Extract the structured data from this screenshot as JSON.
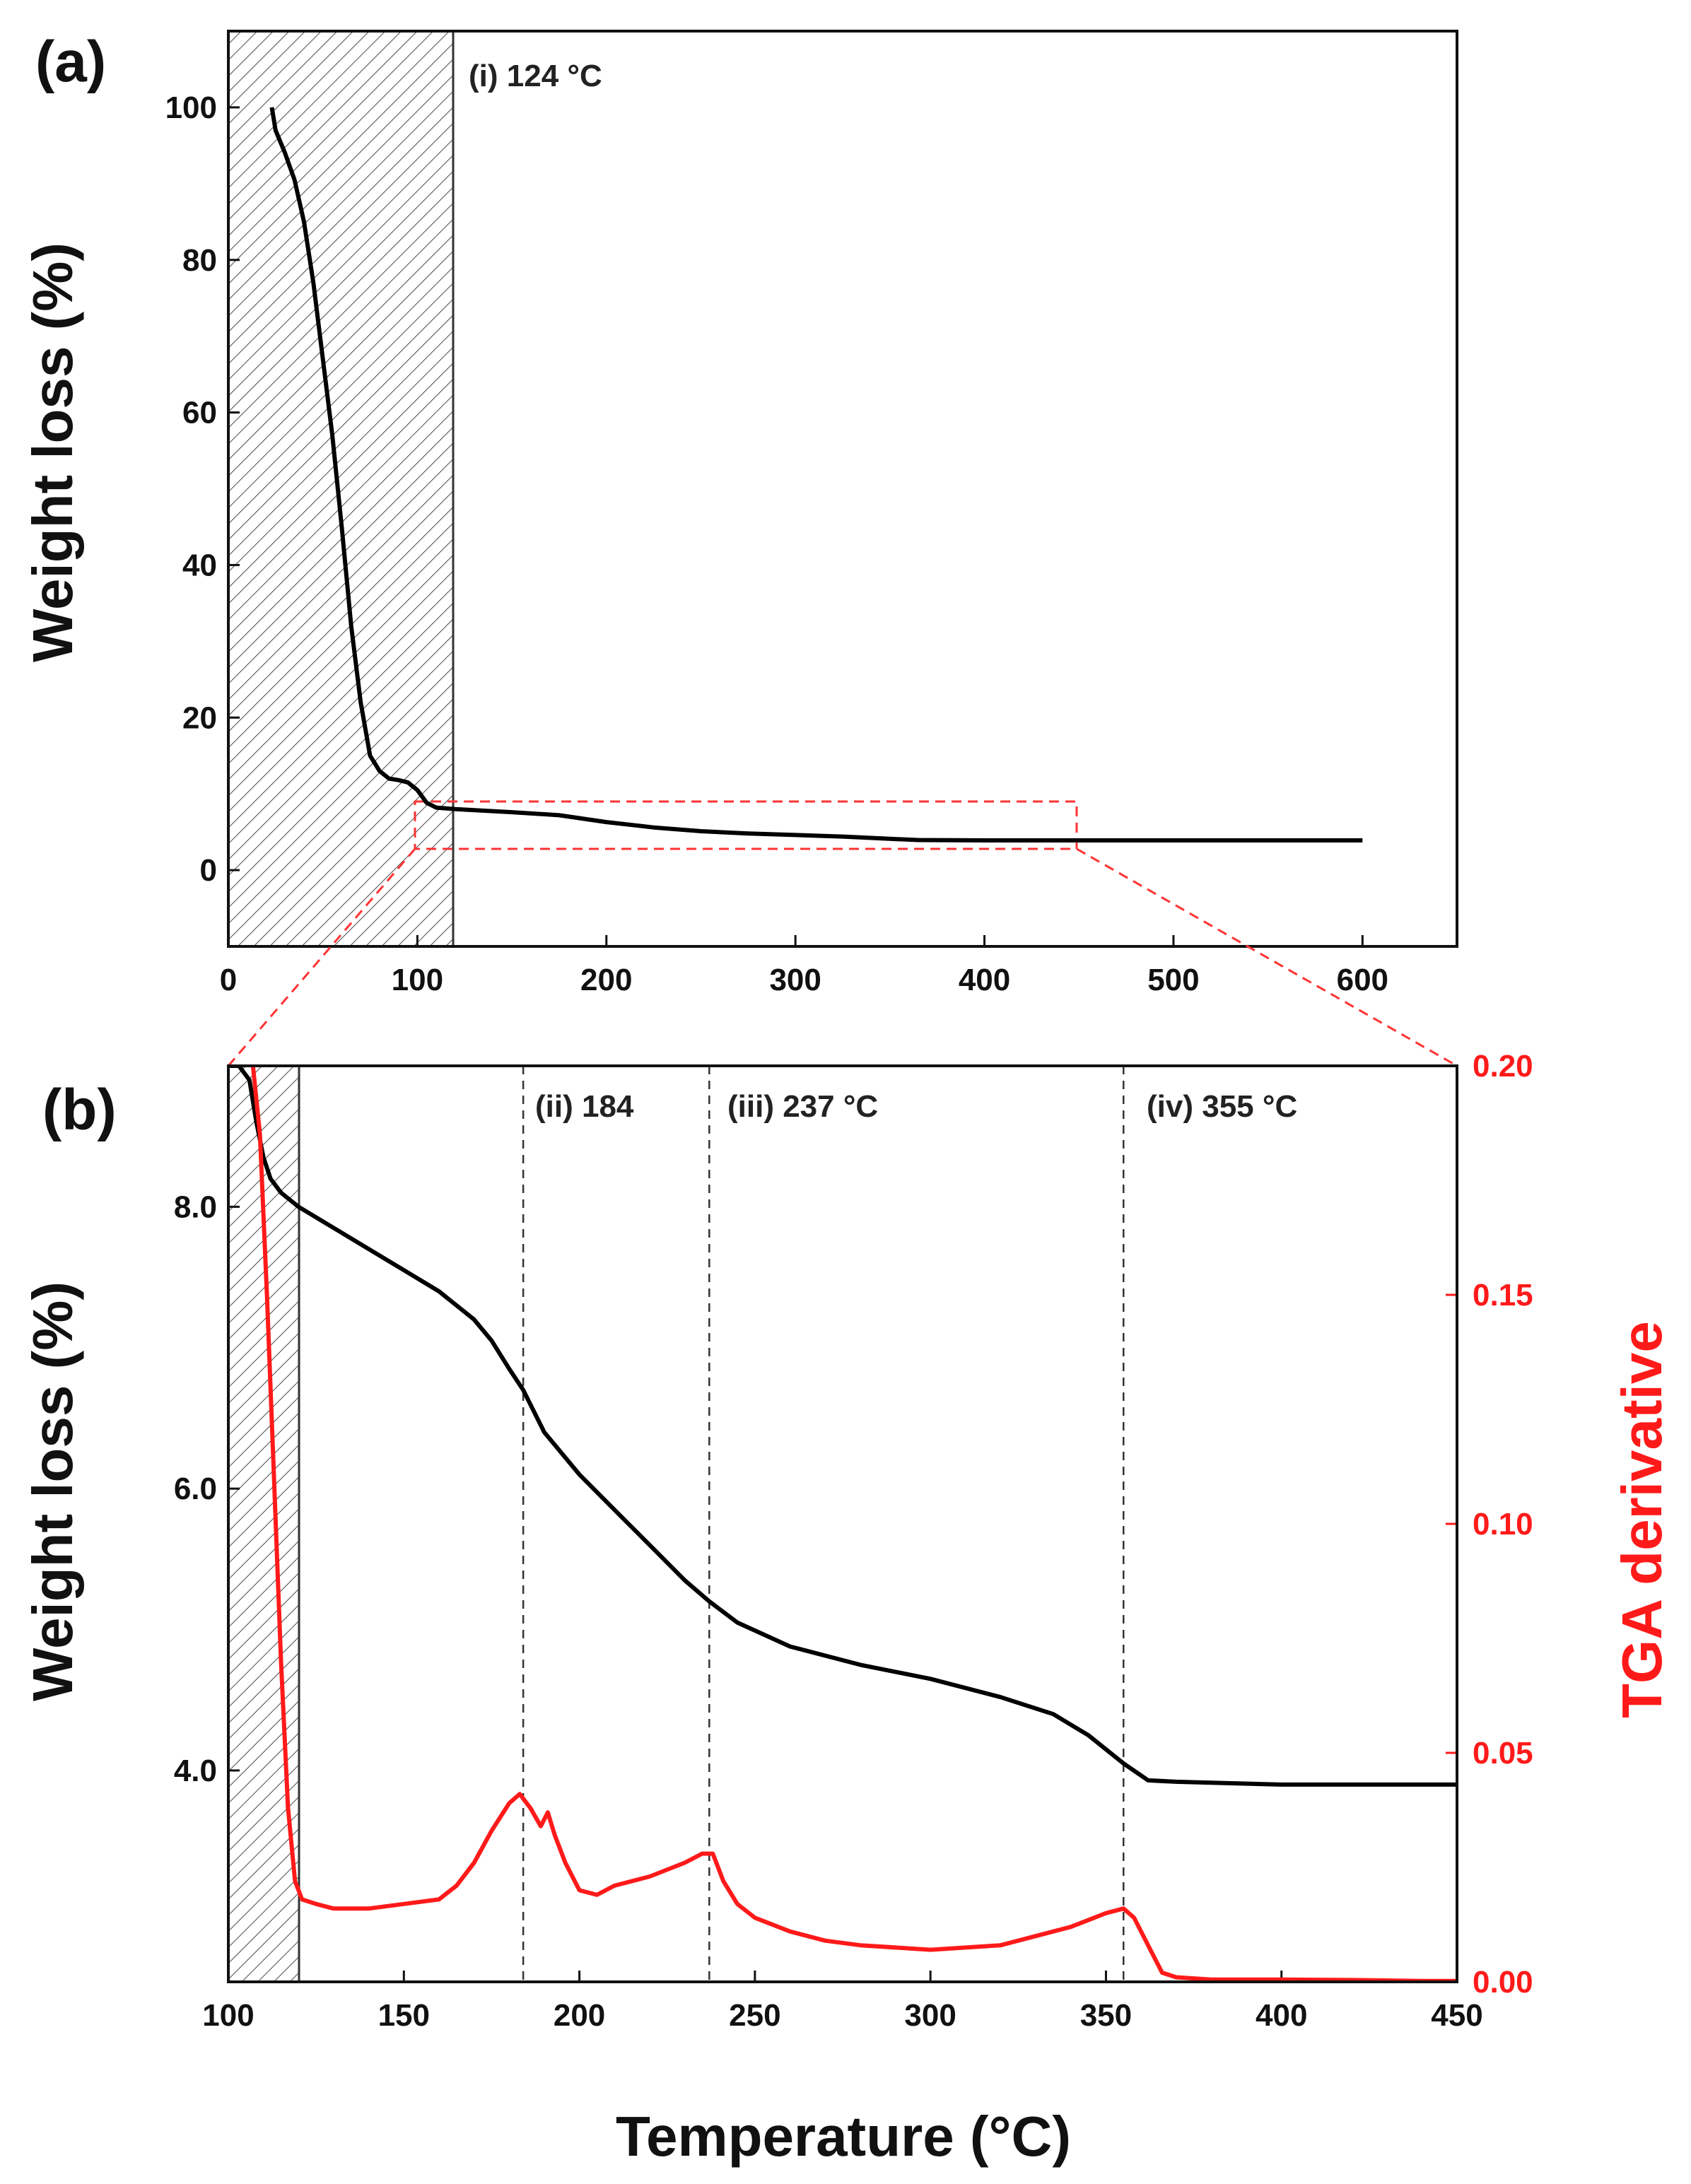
{
  "chart_data": [
    {
      "panel": "(a)",
      "type": "line",
      "xlabel": "",
      "ylabel": "Weight loss (%)",
      "xlim": [
        0,
        650
      ],
      "ylim": [
        -10,
        110
      ],
      "xticks": [
        0,
        100,
        200,
        300,
        400,
        500,
        600
      ],
      "yticks": [
        0,
        20,
        40,
        60,
        80,
        100
      ],
      "shaded_region": [
        0,
        120
      ],
      "zoom_box": {
        "x": [
          100,
          450
        ],
        "y": [
          2.5,
          9
        ]
      },
      "annotations": [
        {
          "text": "(i) 124 °C",
          "x": 120
        }
      ],
      "series": [
        {
          "name": "Weight loss",
          "color": "#000000",
          "x": [
            23,
            25,
            30,
            35,
            40,
            45,
            50,
            55,
            60,
            65,
            70,
            75,
            80,
            85,
            90,
            95,
            100,
            105,
            110,
            120,
            150,
            175,
            200,
            225,
            250,
            275,
            300,
            325,
            350,
            365,
            400,
            450,
            500,
            550,
            600
          ],
          "y": [
            100,
            97,
            94,
            90.5,
            85,
            77,
            67,
            57,
            45,
            32,
            22,
            15,
            13,
            12,
            11.8,
            11.5,
            10.5,
            8.8,
            8.2,
            8,
            7.6,
            7.2,
            6.3,
            5.6,
            5.1,
            4.8,
            4.6,
            4.4,
            4.1,
            3.95,
            3.9,
            3.9,
            3.9,
            3.9,
            3.9
          ]
        }
      ]
    },
    {
      "panel": "(b)",
      "type": "line",
      "xlabel": "Temperature (°C)",
      "ylabel": "Weight loss (%)",
      "y2label": "TGA derivative",
      "xlim": [
        100,
        450
      ],
      "ylim": [
        2.5,
        9
      ],
      "y2lim": [
        0,
        0.2
      ],
      "xticks": [
        100,
        150,
        200,
        250,
        300,
        350,
        400,
        450
      ],
      "yticks": [
        4.0,
        6.0,
        8.0
      ],
      "y2ticks": [
        0.0,
        0.05,
        0.1,
        0.15,
        0.2
      ],
      "shaded_region": [
        100,
        120
      ],
      "annotations": [
        {
          "text": "(ii) 184",
          "x": 184
        },
        {
          "text": "(iii) 237 °C",
          "x": 237
        },
        {
          "text": "(iv) 355 °C",
          "x": 355
        }
      ],
      "series": [
        {
          "name": "Weight loss",
          "axis": "left",
          "color": "#000000",
          "x": [
            100,
            103,
            106,
            108,
            110,
            112,
            115,
            120,
            130,
            140,
            150,
            160,
            170,
            175,
            180,
            184,
            190,
            200,
            210,
            220,
            230,
            237,
            245,
            260,
            280,
            300,
            320,
            335,
            345,
            355,
            362,
            370,
            400,
            430,
            450
          ],
          "y": [
            9.0,
            9.0,
            8.9,
            8.6,
            8.35,
            8.2,
            8.1,
            8.0,
            7.85,
            7.7,
            7.55,
            7.4,
            7.2,
            7.05,
            6.85,
            6.7,
            6.4,
            6.1,
            5.85,
            5.6,
            5.35,
            5.2,
            5.05,
            4.88,
            4.75,
            4.65,
            4.52,
            4.4,
            4.25,
            4.05,
            3.93,
            3.92,
            3.9,
            3.9,
            3.9
          ]
        },
        {
          "name": "TGA derivative",
          "axis": "right",
          "color": "#ff1a1a",
          "x": [
            107,
            109,
            111,
            113,
            115,
            117,
            119,
            121,
            125,
            130,
            140,
            150,
            160,
            165,
            170,
            175,
            180,
            183,
            186,
            189,
            191,
            193,
            196,
            200,
            205,
            210,
            220,
            230,
            235,
            238,
            241,
            245,
            250,
            260,
            270,
            280,
            300,
            320,
            340,
            350,
            355,
            358,
            362,
            366,
            370,
            380,
            400,
            420,
            440,
            450
          ],
          "y": [
            0.2,
            0.185,
            0.15,
            0.11,
            0.07,
            0.038,
            0.022,
            0.018,
            0.017,
            0.016,
            0.016,
            0.017,
            0.018,
            0.021,
            0.026,
            0.033,
            0.039,
            0.041,
            0.038,
            0.034,
            0.037,
            0.032,
            0.026,
            0.02,
            0.019,
            0.021,
            0.023,
            0.026,
            0.028,
            0.028,
            0.022,
            0.017,
            0.014,
            0.011,
            0.009,
            0.008,
            0.007,
            0.008,
            0.012,
            0.015,
            0.016,
            0.014,
            0.008,
            0.002,
            0.001,
            0.0005,
            0.0005,
            0.0004,
            0.0002,
            0.0002
          ]
        }
      ]
    }
  ]
}
